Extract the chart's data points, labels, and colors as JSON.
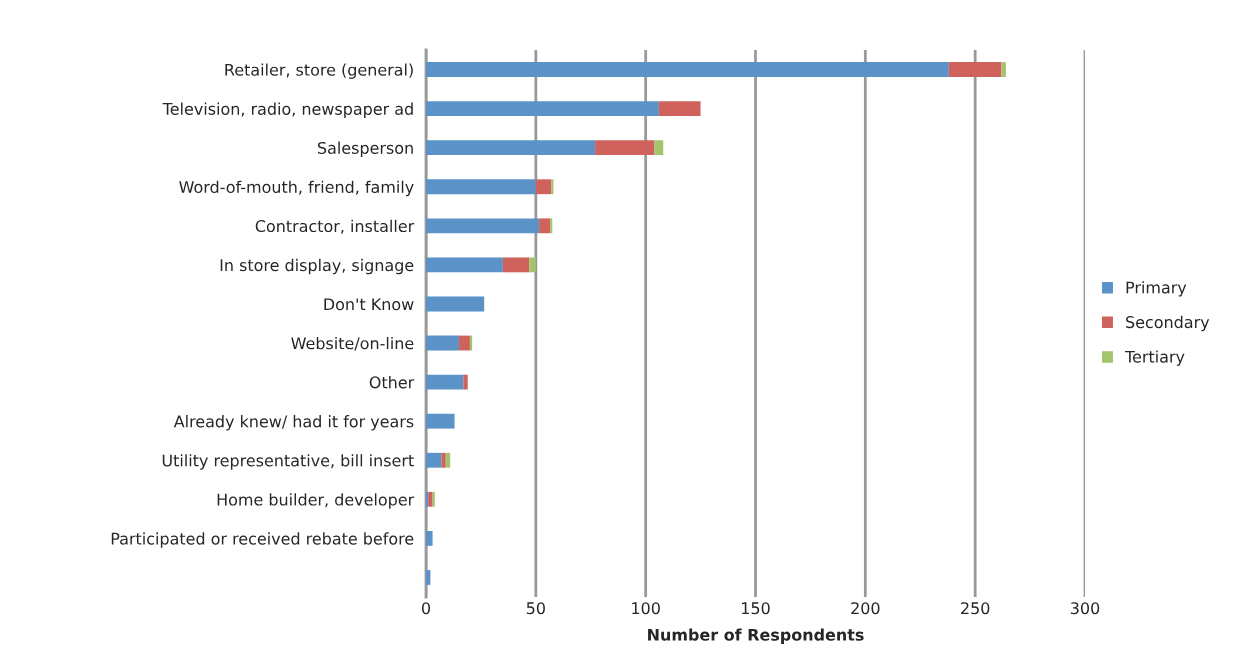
{
  "chart_data": {
    "type": "bar",
    "orientation": "horizontal",
    "stacked": true,
    "xlabel": "Number of Respondents",
    "categories": [
      "Retailer, store (general)",
      "Television, radio, newspaper ad",
      "Salesperson",
      "Word-of-mouth, friend, family",
      "Contractor, installer",
      "In store display, signage",
      "Don't Know",
      "Website/on-line",
      "Other",
      "Already knew/ had it for years",
      "Utility representative, bill insert",
      "Home builder, developer",
      "Participated or received rebate before",
      null
    ],
    "series": [
      {
        "name": "Primary",
        "color": "#5b93c9",
        "values": [
          238,
          106,
          77,
          50,
          51.5,
          35,
          26.5,
          15,
          17,
          13,
          7,
          1,
          3,
          2
        ]
      },
      {
        "name": "Secondary",
        "color": "#d0625d",
        "values": [
          24,
          19,
          27,
          7,
          5,
          12,
          null,
          5,
          2,
          null,
          2,
          2,
          null,
          null
        ]
      },
      {
        "name": "Tertiary",
        "color": "#a4c46b",
        "values": [
          2,
          null,
          4,
          1,
          1,
          3,
          null,
          1,
          null,
          null,
          2,
          1,
          null,
          null
        ]
      }
    ],
    "xlim": [
      0,
      300
    ],
    "xticks": [
      0,
      50,
      100,
      150,
      200,
      250,
      300
    ],
    "grid": "x",
    "legend": "right"
  }
}
